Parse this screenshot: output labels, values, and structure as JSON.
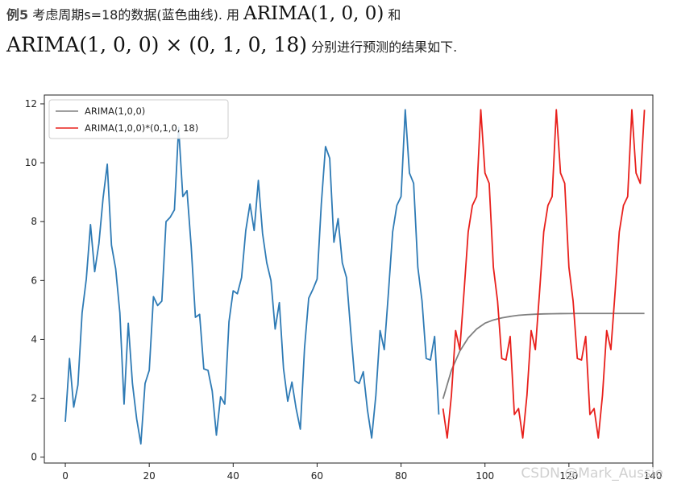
{
  "intro": {
    "label": "例5",
    "line1_text": " 考虑周期s=18的数据(蓝色曲线). 用 ",
    "line1_math": "ARIMA(1, 0, 0)",
    "line1_tail": " 和",
    "line2_math": "ARIMA(1, 0, 0) × (0, 1, 0, 18)",
    "line2_tail": " 分别进行预测的结果如下."
  },
  "watermark": "CSDN @Mark_Aussie",
  "chart_data": {
    "type": "line",
    "xlim": [
      -5,
      140
    ],
    "ylim": [
      -0.2,
      12.3
    ],
    "xticks": [
      0,
      20,
      40,
      60,
      80,
      100,
      120,
      140
    ],
    "yticks": [
      0,
      2,
      4,
      6,
      8,
      10,
      12
    ],
    "grid": false,
    "legend_placement": "top-left",
    "legend": [
      {
        "label": "ARIMA(1,0,0)",
        "color": "#808080"
      },
      {
        "label": "ARIMA(1,0,0)*(0,1,0, 18)",
        "color": "#e8201c"
      }
    ],
    "series": [
      {
        "color": "#2f7bb5",
        "x": [
          0,
          1,
          2,
          3,
          4,
          5,
          6,
          7,
          8,
          9,
          10,
          11,
          12,
          13,
          14,
          15,
          16,
          17,
          18,
          19,
          20,
          21,
          22,
          23,
          24,
          25,
          26,
          27,
          28,
          29,
          30,
          31,
          32,
          33,
          34,
          35,
          36,
          37,
          38,
          39,
          40,
          41,
          42,
          43,
          44,
          45,
          46,
          47,
          48,
          49,
          50,
          51,
          52,
          53,
          54,
          55,
          56,
          57,
          58,
          59,
          60,
          61,
          62,
          63,
          64,
          65,
          66,
          67,
          68,
          69,
          70,
          71,
          72,
          73,
          74,
          75,
          76,
          77,
          78,
          79,
          80,
          81,
          82,
          83,
          84,
          85,
          86,
          87,
          88,
          89
        ],
        "y": [
          1.2,
          3.35,
          1.7,
          2.45,
          4.9,
          6.05,
          7.9,
          6.3,
          7.25,
          8.8,
          9.95,
          7.2,
          6.4,
          4.9,
          1.8,
          4.55,
          2.5,
          1.3,
          0.45,
          2.5,
          2.95,
          5.45,
          5.15,
          5.3,
          8.0,
          8.15,
          8.4,
          11.2,
          8.85,
          9.05,
          7.15,
          4.75,
          4.85,
          3.0,
          2.95,
          2.25,
          0.75,
          2.05,
          1.8,
          4.6,
          5.65,
          5.55,
          6.1,
          7.7,
          8.6,
          7.7,
          9.4,
          7.6,
          6.6,
          6.0,
          4.35,
          5.25,
          3.0,
          1.9,
          2.55,
          1.65,
          0.95,
          3.7,
          5.4,
          5.7,
          6.05,
          8.6,
          10.55,
          10.15,
          7.3,
          8.1,
          6.6,
          6.1,
          4.3,
          2.6,
          2.5,
          2.9,
          1.6,
          0.65,
          2.1,
          4.3,
          3.65,
          5.6,
          7.65,
          8.55,
          8.85,
          11.8,
          9.65,
          9.3,
          6.45,
          5.3,
          3.35,
          3.3,
          4.1,
          1.45
        ]
      },
      {
        "name": "ARIMA(1,0,0)",
        "color": "#808080",
        "x": [
          90,
          92,
          94,
          96,
          98,
          100,
          102,
          104,
          106,
          108,
          110,
          112,
          114,
          116,
          118,
          120,
          122,
          124,
          126,
          128,
          130,
          132,
          134,
          136,
          138
        ],
        "y": [
          1.98,
          2.95,
          3.6,
          4.05,
          4.35,
          4.55,
          4.66,
          4.73,
          4.78,
          4.82,
          4.84,
          4.855,
          4.865,
          4.87,
          4.875,
          4.878,
          4.88,
          4.88,
          4.88,
          4.88,
          4.88,
          4.88,
          4.88,
          4.88,
          4.88
        ]
      },
      {
        "name": "ARIMA(1,0,0)*(0,1,0, 18)",
        "color": "#e8201c",
        "x": [
          90,
          91,
          92,
          93,
          94,
          95,
          96,
          97,
          98,
          99,
          100,
          101,
          102,
          103,
          104,
          105,
          106,
          107,
          108,
          109,
          110,
          111,
          112,
          113,
          114,
          115,
          116,
          117,
          118,
          119,
          120,
          121,
          122,
          123,
          124,
          125,
          126,
          127,
          128,
          129,
          130,
          131,
          132,
          133,
          134,
          135,
          136,
          137,
          138
        ],
        "y": [
          1.65,
          0.65,
          2.1,
          4.3,
          3.65,
          5.6,
          7.65,
          8.55,
          8.85,
          11.8,
          9.65,
          9.3,
          6.45,
          5.3,
          3.35,
          3.3,
          4.1,
          1.45,
          1.65,
          0.65,
          2.1,
          4.3,
          3.65,
          5.6,
          7.65,
          8.55,
          8.85,
          11.8,
          9.65,
          9.3,
          6.45,
          5.3,
          3.35,
          3.3,
          4.1,
          1.45,
          1.65,
          0.65,
          2.1,
          4.3,
          3.65,
          5.6,
          7.65,
          8.55,
          8.85,
          11.8,
          9.65,
          9.3,
          11.8
        ]
      }
    ]
  }
}
